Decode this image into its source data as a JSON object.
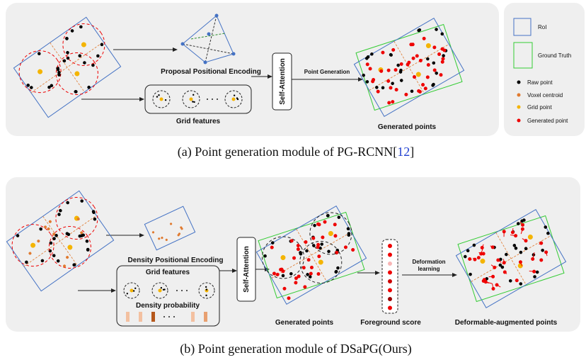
{
  "panel_a": {
    "proposal_encoding": "Proposal Positional  Encoding",
    "grid_features": "Grid features",
    "self_attention": "Self-Attention",
    "point_generation": "Point Generation",
    "generated_points": "Generated  points",
    "caption": {
      "prefix": "(a) Point generation module of PG-RCNN[",
      "ref": "12",
      "suffix": "]"
    }
  },
  "legend": {
    "roi": "RoI",
    "ground_truth": "Ground Truth",
    "raw_point": "Raw point",
    "voxel_centroid": "Voxel centroid",
    "grid_point": "Grid point",
    "generated_point": "Generated point"
  },
  "panel_b": {
    "density_encoding": "Density Positional  Encoding",
    "grid_features": "Grid features",
    "density_probability": "Density probability",
    "self_attention": "Self-Attention",
    "generated_points": "Generated  points",
    "foreground_score": "Foreground score",
    "deformation_learning": [
      "Deformation",
      "learning"
    ],
    "deformable_points": "Deformable-augmented points",
    "caption": "(b) Point generation module of DSaPG(Ours)"
  }
}
